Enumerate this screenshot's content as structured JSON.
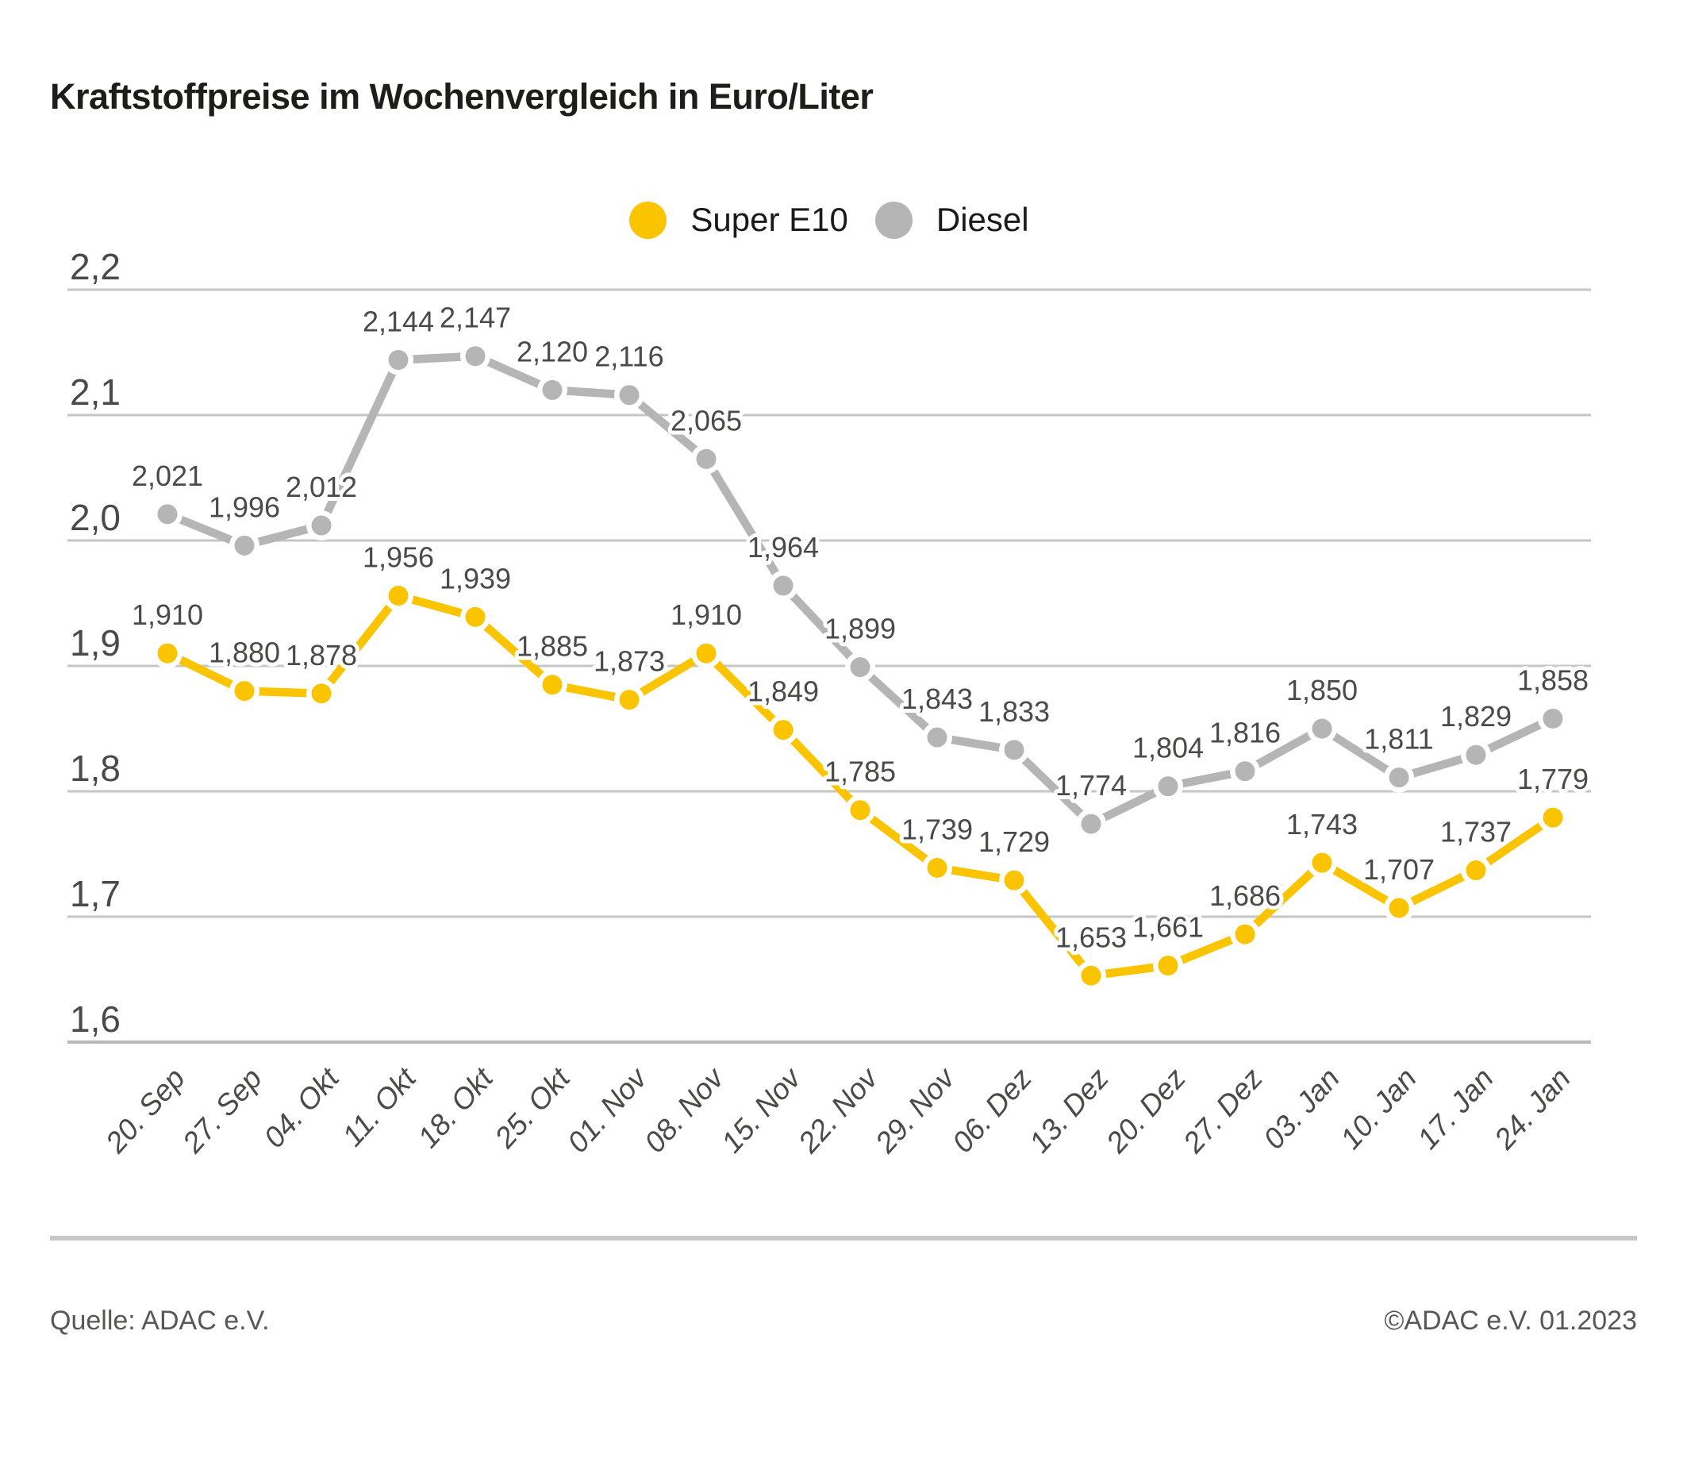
{
  "title": "Kraftstoffpreise im Wochenvergleich in Euro/Liter",
  "legend": [
    {
      "label": "Super E10",
      "color": "#fbc400"
    },
    {
      "label": "Diesel",
      "color": "#b5b5b5"
    }
  ],
  "footer": {
    "source": "Quelle: ADAC e.V.",
    "copyright": "©ADAC e.V. 01.2023"
  },
  "chart_data": {
    "type": "line",
    "title": "Kraftstoffpreise im Wochenvergleich in Euro/Liter",
    "unit": "Euro/Liter",
    "decimal_separator": ",",
    "grid": true,
    "legend_position": "top-center",
    "categories": [
      "20. Sep",
      "27. Sep",
      "04. Okt",
      "11. Okt",
      "18. Okt",
      "25. Okt",
      "01. Nov",
      "08. Nov",
      "15. Nov",
      "22. Nov",
      "29. Nov",
      "06. Dez",
      "13. Dez",
      "20. Dez",
      "27. Dez",
      "03. Jan",
      "10. Jan",
      "17. Jan",
      "24. Jan"
    ],
    "series": [
      {
        "name": "Super E10",
        "slug": "super-e10",
        "color": "#fbc400",
        "values": [
          1.91,
          1.88,
          1.878,
          1.956,
          1.939,
          1.885,
          1.873,
          1.91,
          1.849,
          1.785,
          1.739,
          1.729,
          1.653,
          1.661,
          1.686,
          1.743,
          1.707,
          1.737,
          1.779
        ]
      },
      {
        "name": "Diesel",
        "slug": "diesel",
        "color": "#b5b5b5",
        "values": [
          2.021,
          1.996,
          2.012,
          2.144,
          2.147,
          2.12,
          2.116,
          2.065,
          1.964,
          1.899,
          1.843,
          1.833,
          1.774,
          1.804,
          1.816,
          1.85,
          1.811,
          1.829,
          1.858
        ]
      }
    ],
    "ylim": [
      1.6,
      2.2
    ],
    "yticks": [
      2.2,
      2.1,
      2.0,
      1.9,
      1.8,
      1.7,
      1.6
    ],
    "ytick_labels": [
      "2,2",
      "2,1",
      "2,0",
      "1,9",
      "1,8",
      "1,7",
      "1,6"
    ]
  }
}
